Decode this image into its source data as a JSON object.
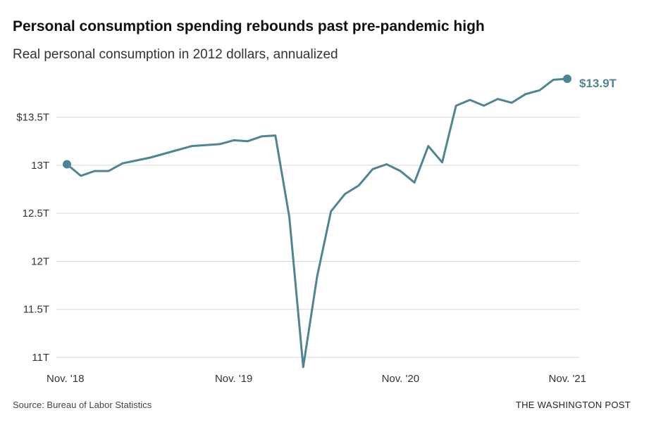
{
  "header": {
    "title": "Personal consumption spending rebounds past pre-pandemic high",
    "subtitle": "Real personal consumption in 2012 dollars, annualized"
  },
  "footer": {
    "source": "Source: Bureau of Labor Statistics",
    "brand": "THE WASHINGTON POST"
  },
  "colors": {
    "line": "#4f8590",
    "grid": "#d9d9d9",
    "label": "#4f8590"
  },
  "chart_data": {
    "type": "line",
    "title": "Personal consumption spending rebounds past pre-pandemic high",
    "subtitle": "Real personal consumption in 2012 dollars, annualized",
    "xlabel": "",
    "ylabel": "",
    "ylim": [
      10.95,
      13.95
    ],
    "yticks": [
      11,
      11.5,
      12,
      12.5,
      13,
      13.5
    ],
    "ytick_labels": [
      "11T",
      "11.5T",
      "12T",
      "12.5T",
      "13T",
      "$13.5T"
    ],
    "xticks": [
      0,
      12,
      24,
      36
    ],
    "xtick_labels": [
      "Nov. '18",
      "Nov. '19",
      "Nov. '20",
      "Nov. '21"
    ],
    "grid": true,
    "series": [
      {
        "name": "Real personal consumption",
        "x": [
          0,
          1,
          2,
          3,
          4,
          5,
          6,
          7,
          8,
          9,
          10,
          11,
          12,
          13,
          14,
          15,
          16,
          17,
          18,
          19,
          20,
          21,
          22,
          23,
          24,
          25,
          26,
          27,
          28,
          29,
          30,
          31,
          32,
          33,
          34,
          35,
          36
        ],
        "values": [
          13.01,
          12.89,
          12.94,
          12.94,
          13.02,
          13.05,
          13.08,
          13.12,
          13.16,
          13.2,
          13.21,
          13.22,
          13.26,
          13.25,
          13.3,
          13.31,
          12.46,
          10.9,
          11.84,
          12.52,
          12.7,
          12.79,
          12.96,
          13.01,
          12.94,
          12.82,
          13.2,
          13.03,
          13.62,
          13.68,
          13.62,
          13.69,
          13.65,
          13.74,
          13.78,
          13.89,
          13.9
        ]
      }
    ],
    "annotations": [
      {
        "x": 36,
        "label": "$13.9T"
      }
    ]
  }
}
